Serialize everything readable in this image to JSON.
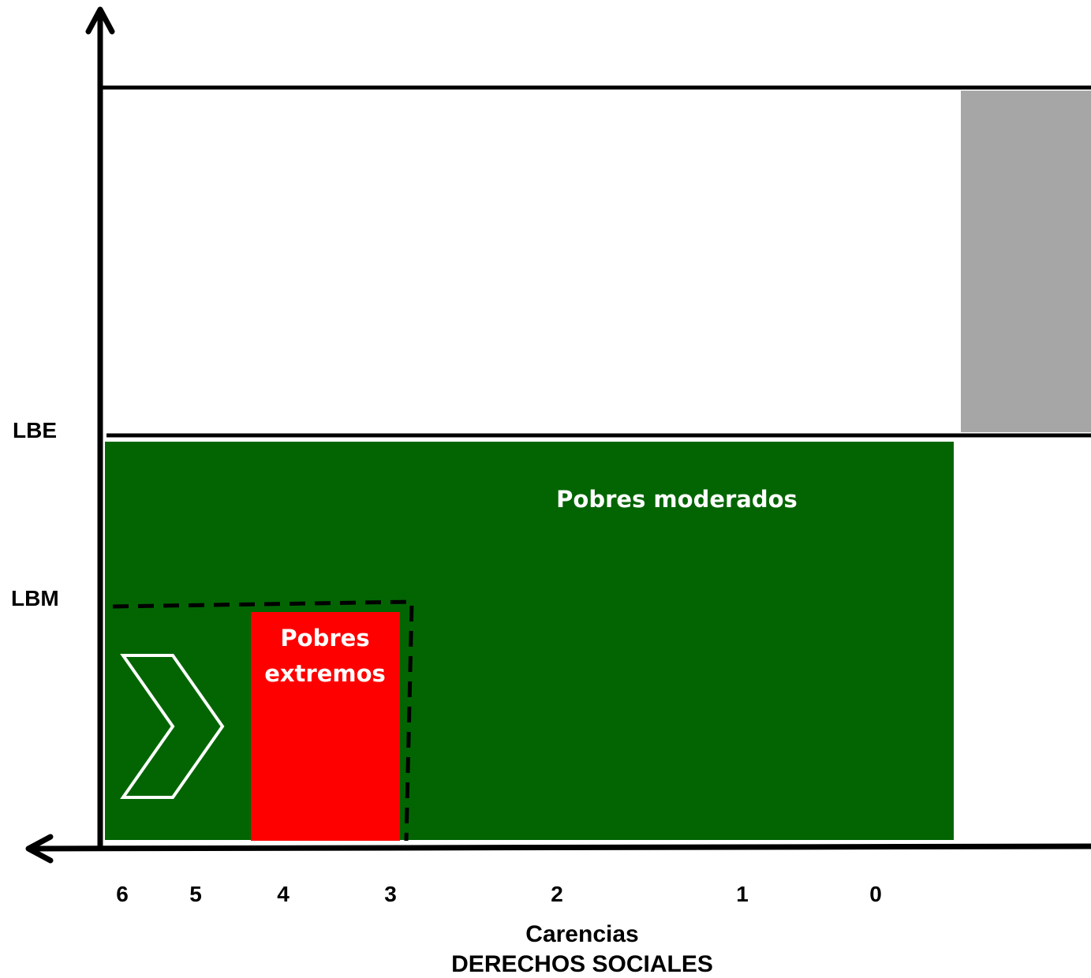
{
  "colors": {
    "moderate": "#026502",
    "extreme": "#ff0000",
    "gray": "#a6a6a6",
    "axis": "#000000",
    "region_text": "#ffffff"
  },
  "y_levels": {
    "lbe": "LBE",
    "lbm": "LBM"
  },
  "regions": {
    "moderate_label": "Pobres moderados",
    "extreme_label_line1": "Pobres",
    "extreme_label_line2": "extremos"
  },
  "x_ticks": [
    "6",
    "5",
    "4",
    "3",
    "2",
    "1",
    "0"
  ],
  "x_axis": {
    "title_line1": "Carencias",
    "title_line2": "DERECHOS SOCIALES"
  },
  "icons": {
    "arrow": "chevron-right-icon"
  }
}
